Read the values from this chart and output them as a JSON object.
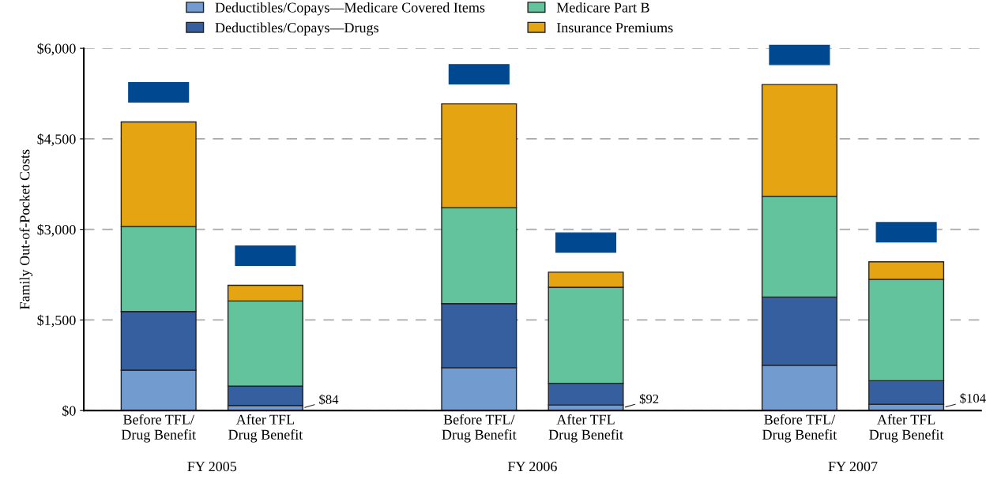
{
  "chart_data": {
    "type": "bar",
    "stacked": true,
    "ylabel": "Family Out-of-Pocket Costs",
    "categories": [
      "Before TFL/\nDrug Benefit",
      "After TFL\nDrug Benefit",
      null,
      "Before TFL/\nDrug Benefit",
      "After TFL\nDrug Benefit",
      null,
      "Before TFL/\nDrug Benefit",
      "After TFL\nDrug Benefit"
    ],
    "series": [
      {
        "name": "Deductibles/Copays—Medicare Covered Items",
        "color": "#729bd0",
        "values": [
          670,
          84,
          null,
          710,
          92,
          null,
          750,
          104
        ],
        "value_labels": [
          null,
          "$84",
          null,
          null,
          "$92",
          null,
          null,
          "$104"
        ]
      },
      {
        "name": "Deductibles/Copays—Drugs",
        "color": "#365f9f",
        "values": [
          970,
          320,
          null,
          1060,
          360,
          null,
          1130,
          390
        ]
      },
      {
        "name": "Medicare Part B",
        "color": "#63c39c",
        "values": [
          1410,
          1410,
          null,
          1590,
          1590,
          null,
          1670,
          1680
        ]
      },
      {
        "name": "Insurance Premiums",
        "color": "#e5a513",
        "values": [
          1730,
          260,
          null,
          1720,
          250,
          null,
          1850,
          290
        ]
      }
    ],
    "ylim": [
      0,
      6000
    ],
    "yticks": [
      {
        "value": 0,
        "label": "$0"
      },
      {
        "value": 1500,
        "label": "$1,500"
      },
      {
        "value": 3000,
        "label": "$3,000"
      },
      {
        "value": 4500,
        "label": "$4,500"
      },
      {
        "value": 6000,
        "label": "$6,000"
      }
    ],
    "grid": "y",
    "legend": "top",
    "annotations": [
      "FY 2005",
      "FY 2006",
      "FY 2007"
    ]
  }
}
